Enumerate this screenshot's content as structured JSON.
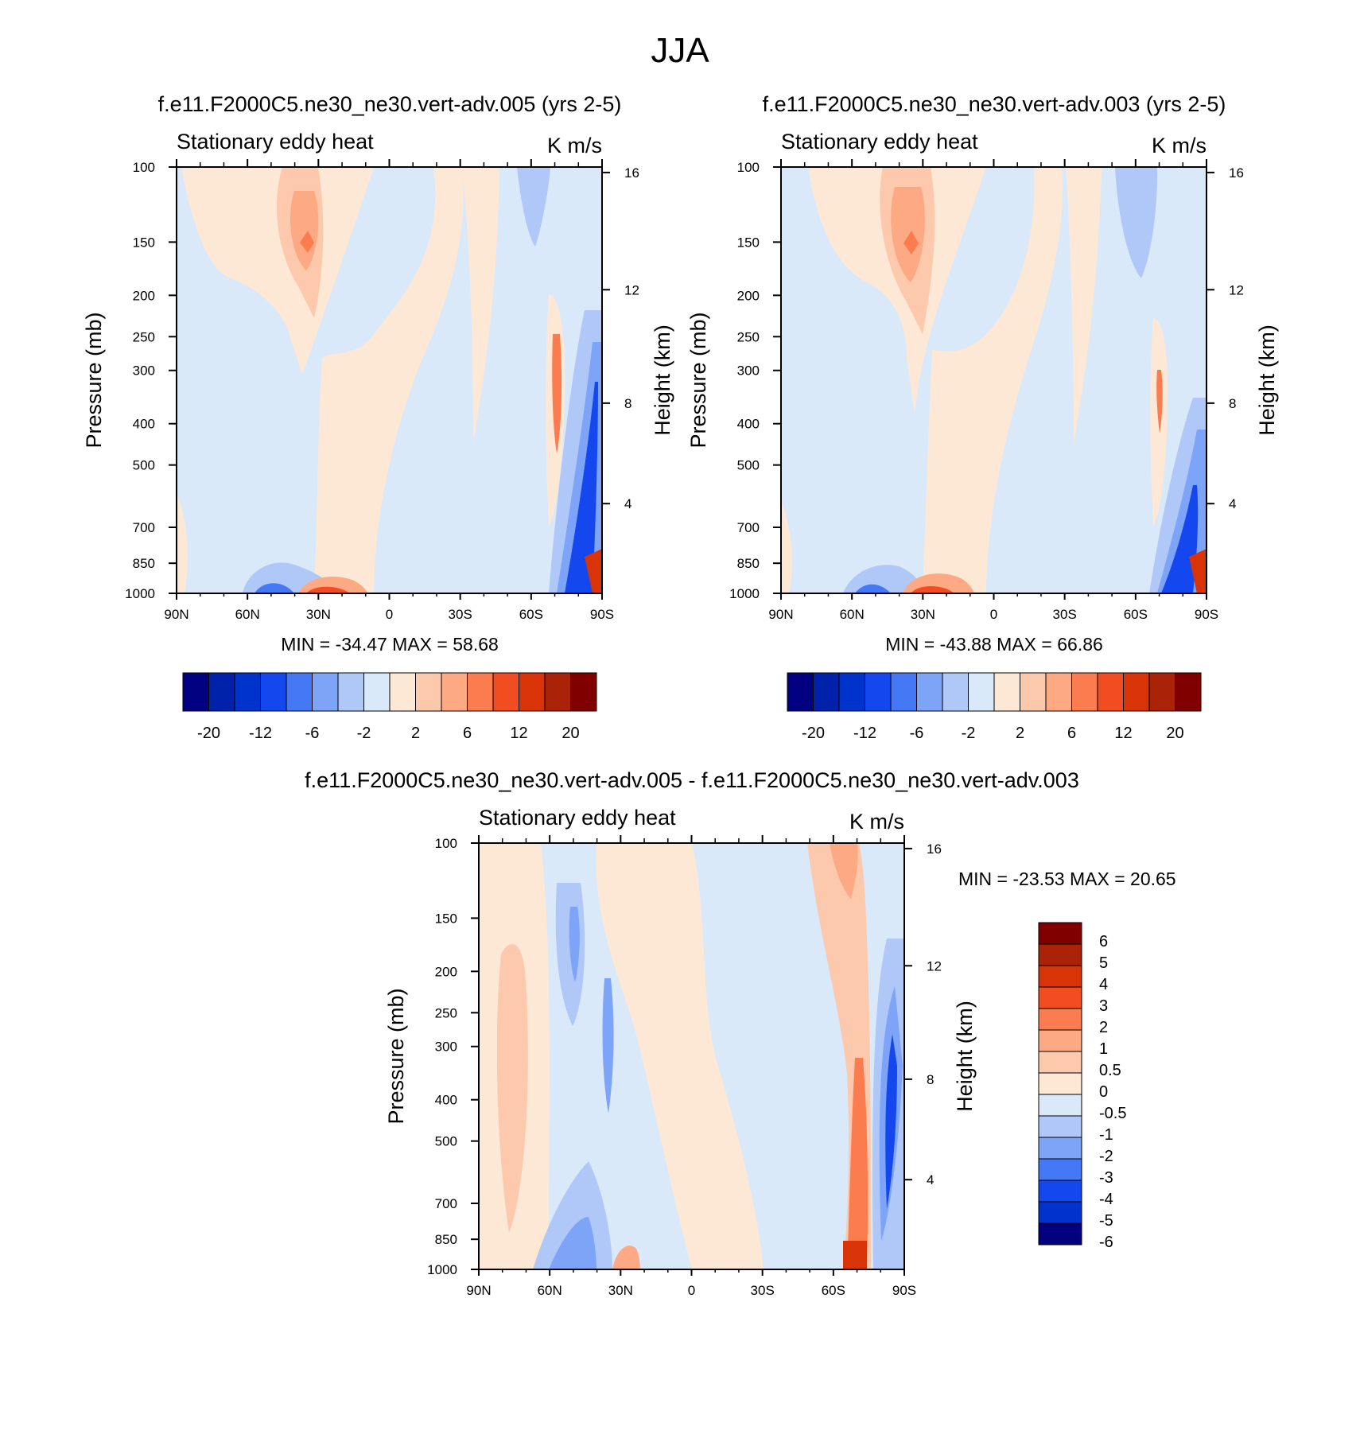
{
  "figure": {
    "title": "JJA"
  },
  "chart_data": [
    {
      "type": "heatmap",
      "title": "f.e11.F2000C5.ne30_ne30.vert-adv.005 (yrs 2-5)",
      "left_label": "Stationary eddy heat",
      "units": "K m/s",
      "xlabel": "",
      "ylabel": "Pressure (mb)",
      "y2label": "Height (km)",
      "x_ticks": [
        "90N",
        "60N",
        "30N",
        "0",
        "30S",
        "60S",
        "90S"
      ],
      "y_ticks": [
        "100",
        "150",
        "200",
        "250",
        "300",
        "400",
        "500",
        "700",
        "850",
        "1000"
      ],
      "y2_ticks": [
        "16",
        "12",
        "8",
        "4"
      ],
      "stats": "MIN = -34.47  MAX =  58.68",
      "colorbar_labels": [
        "-20",
        "-12",
        "-6",
        "-2",
        "2",
        "6",
        "12",
        "20"
      ],
      "features": [
        {
          "name": "positive maximum near 150 mb, 35N",
          "value": 12
        },
        {
          "name": "surface negative maximum, 65S-85S",
          "value": -20
        },
        {
          "name": "surface positive maximum, 85S-90S",
          "value": 58.68
        }
      ]
    },
    {
      "type": "heatmap",
      "title": "f.e11.F2000C5.ne30_ne30.vert-adv.003 (yrs 2-5)",
      "left_label": "Stationary eddy heat",
      "units": "K m/s",
      "xlabel": "",
      "ylabel": "Pressure (mb)",
      "y2label": "Height (km)",
      "x_ticks": [
        "90N",
        "60N",
        "30N",
        "0",
        "30S",
        "60S",
        "90S"
      ],
      "y_ticks": [
        "100",
        "150",
        "200",
        "250",
        "300",
        "400",
        "500",
        "700",
        "850",
        "1000"
      ],
      "y2_ticks": [
        "16",
        "12",
        "8",
        "4"
      ],
      "stats": "MIN = -43.88  MAX =  66.86",
      "colorbar_labels": [
        "-20",
        "-12",
        "-6",
        "-2",
        "2",
        "6",
        "12",
        "20"
      ],
      "features": [
        {
          "name": "positive maximum near 150 mb, 35N",
          "value": 12
        },
        {
          "name": "surface negative maximum, 65S-85S",
          "value": -20
        },
        {
          "name": "surface positive maximum, 85S-90S",
          "value": 66.86
        }
      ]
    },
    {
      "type": "heatmap",
      "title": "f.e11.F2000C5.ne30_ne30.vert-adv.005 - f.e11.F2000C5.ne30_ne30.vert-adv.003",
      "left_label": "Stationary eddy heat",
      "units": "K m/s",
      "xlabel": "",
      "ylabel": "Pressure (mb)",
      "y2label": "Height (km)",
      "x_ticks": [
        "90N",
        "60N",
        "30N",
        "0",
        "30S",
        "60S",
        "90S"
      ],
      "y_ticks": [
        "100",
        "150",
        "200",
        "250",
        "300",
        "400",
        "500",
        "700",
        "850",
        "1000"
      ],
      "y2_ticks": [
        "16",
        "12",
        "8",
        "4"
      ],
      "stats": "MIN = -23.53  MAX =  20.65",
      "colorbar_labels": [
        "6",
        "5",
        "4",
        "3",
        "2",
        "1",
        "0.5",
        "0",
        "-0.5",
        "-1",
        "-2",
        "-3",
        "-4",
        "-5",
        "-6"
      ],
      "features": [
        {
          "name": "positive band near 60S-70S",
          "value": 3
        },
        {
          "name": "negative band near 80S-90S",
          "value": -5
        }
      ]
    }
  ],
  "colorbar_colors": [
    "#000080",
    "#0022aa",
    "#0033cc",
    "#1447ee",
    "#4478f5",
    "#7ea4f7",
    "#b0c8f8",
    "#dae9fa",
    "#fde8d5",
    "#fcc9ad",
    "#fca984",
    "#fa7c4f",
    "#f24d20",
    "#d83408",
    "#aa2208",
    "#800000"
  ],
  "diff_colors": [
    "#800000",
    "#aa2208",
    "#d83408",
    "#f24d20",
    "#fa7c4f",
    "#fca984",
    "#fcc9ad",
    "#fde8d5",
    "#dae9fa",
    "#b0c8f8",
    "#7ea4f7",
    "#4478f5",
    "#1447ee",
    "#0033cc",
    "#000080"
  ]
}
